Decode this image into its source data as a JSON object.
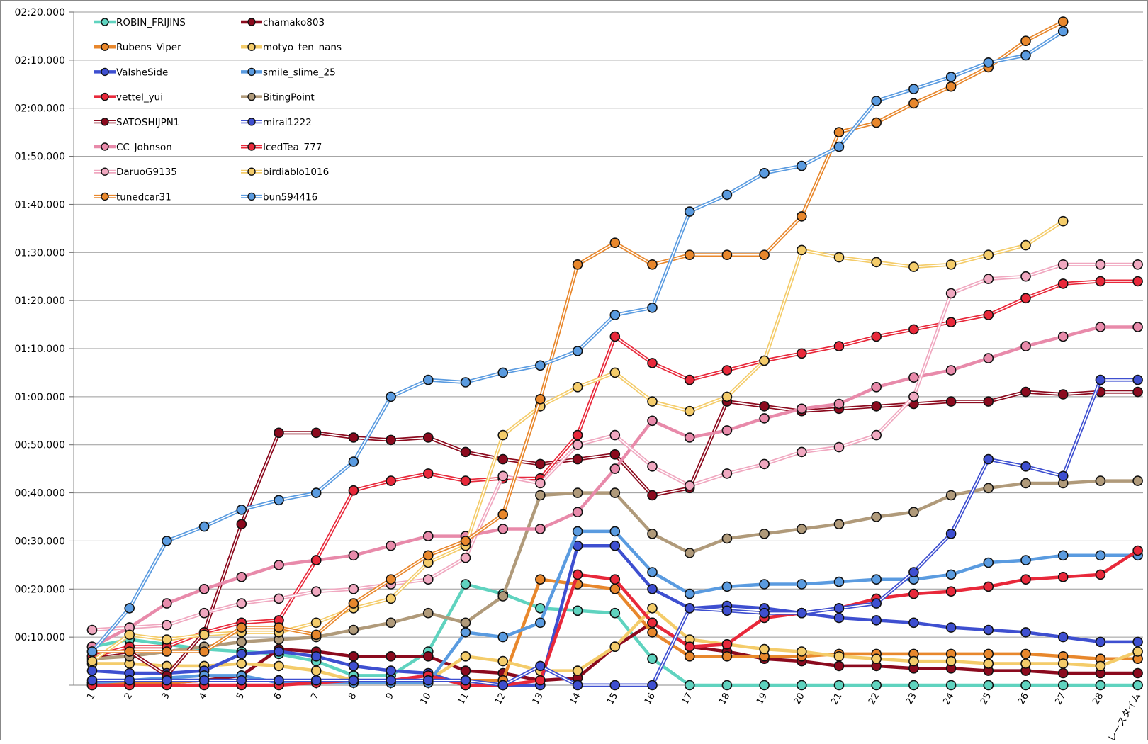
{
  "chart_data": {
    "type": "line",
    "title": "",
    "xlabel": "",
    "ylabel": "",
    "categories": [
      "1",
      "2",
      "3",
      "4",
      "5",
      "6",
      "7",
      "8",
      "9",
      "10",
      "11",
      "12",
      "13",
      "14",
      "15",
      "16",
      "17",
      "18",
      "19",
      "20",
      "21",
      "22",
      "23",
      "24",
      "25",
      "26",
      "27",
      "28",
      "レースタイム"
    ],
    "y_tick_labels": [
      "00:10.000",
      "00:20.000",
      "00:30.000",
      "00:40.000",
      "00:50.000",
      "01:00.000",
      "01:10.000",
      "01:20.000",
      "01:30.000",
      "01:40.000",
      "01:50.000",
      "02:00.000",
      "02:10.000",
      "02:20.000"
    ],
    "ylim": [
      0,
      140
    ],
    "grid": true,
    "legend_position": "top-left",
    "series": [
      {
        "name": "ROBIN_FRIJINS",
        "color": "#5fd3bf",
        "double": false,
        "values": [
          8,
          9.5,
          8.5,
          7.5,
          7,
          6.5,
          5,
          2,
          2,
          7,
          21,
          19,
          16,
          15.5,
          15,
          5.5,
          0,
          0,
          0,
          0,
          0,
          0,
          0,
          0,
          0,
          0,
          0,
          0,
          0
        ]
      },
      {
        "name": "chamako803",
        "color": "#8b0a1e",
        "double": false,
        "values": [
          0,
          0.5,
          0.5,
          1,
          2,
          7.5,
          7,
          6,
          6,
          6,
          3,
          2.5,
          1,
          1.5,
          8,
          13,
          8,
          7,
          5.5,
          5,
          4,
          4,
          3.5,
          3.5,
          3,
          3,
          2.5,
          2.5,
          2.5
        ]
      },
      {
        "name": "Rubens_Viper",
        "color": "#e8872c",
        "double": false,
        "values": [
          0.5,
          0.5,
          0.5,
          1,
          1,
          1,
          1,
          1,
          1,
          1,
          1,
          1,
          22,
          21,
          20,
          11,
          6,
          6,
          6,
          6,
          6.5,
          6.5,
          6.5,
          6.5,
          6.5,
          6.5,
          6,
          5.5,
          5.5
        ]
      },
      {
        "name": "motyo_ten_nans",
        "color": "#f4cc6a",
        "double": false,
        "values": [
          4.5,
          4.5,
          4,
          4,
          4.5,
          4,
          3,
          1,
          1,
          1,
          6,
          5,
          3,
          3,
          8,
          16,
          9.5,
          8.5,
          7.5,
          7,
          6,
          5.5,
          5,
          5,
          4.5,
          4.5,
          4.5,
          4,
          7
        ]
      },
      {
        "name": "ValsheSide",
        "color": "#3e4fd0",
        "double": false,
        "values": [
          3,
          2.5,
          2.5,
          3,
          6.5,
          7,
          6,
          4,
          3,
          2.5,
          0,
          0,
          0,
          29,
          29,
          20,
          16,
          16.5,
          16,
          15,
          14,
          13.5,
          13,
          12,
          11.5,
          11,
          10,
          9,
          9
        ]
      },
      {
        "name": "smile_slime_25",
        "color": "#5a9be0",
        "double": false,
        "values": [
          0.5,
          1,
          1.5,
          2,
          2,
          0.5,
          0.5,
          0.5,
          0.5,
          0.5,
          11,
          10,
          13,
          32,
          32,
          23.5,
          19,
          20.5,
          21,
          21,
          21.5,
          22,
          22,
          23,
          25.5,
          26,
          27,
          27,
          27
        ]
      },
      {
        "name": "vettel_yui",
        "color": "#e8283a",
        "double": false,
        "values": [
          0,
          0,
          0,
          0,
          0,
          0,
          0.5,
          1,
          1,
          2,
          0,
          0,
          1,
          23,
          22,
          13,
          8,
          8.5,
          14,
          15,
          16,
          18,
          19,
          19.5,
          20.5,
          22,
          22.5,
          23,
          28
        ]
      },
      {
        "name": "BitingPoint",
        "color": "#b09a7a",
        "double": false,
        "values": [
          5.5,
          6,
          7,
          8,
          9,
          9.5,
          10,
          11.5,
          13,
          15,
          13,
          18.5,
          39.5,
          40,
          40,
          31.5,
          27.5,
          30.5,
          31.5,
          32.5,
          33.5,
          35,
          36,
          39.5,
          41,
          42,
          42,
          42.5,
          42.5
        ]
      },
      {
        "name": "SATOSHIJPN1",
        "color": "#8b0a1e",
        "double": true,
        "values": [
          6,
          7,
          2,
          11,
          33.5,
          52.5,
          52.5,
          51.5,
          51,
          51.5,
          48.5,
          47,
          46,
          47,
          48,
          39.5,
          41,
          59,
          58,
          57,
          57.5,
          58,
          58.5,
          59,
          59,
          61,
          60.5,
          61,
          61
        ]
      },
      {
        "name": "mirai1222",
        "color": "#3e4fd0",
        "double": true,
        "values": [
          1,
          1,
          1,
          1,
          1,
          1,
          1,
          1,
          1,
          1,
          1,
          0,
          4,
          0,
          0,
          0,
          16,
          15.5,
          15,
          15,
          16,
          17,
          23.5,
          31.5,
          47,
          45.5,
          43.5,
          63.5,
          63.5
        ]
      },
      {
        "name": "CC_Johnson_",
        "color": "#e88aaa",
        "double": false,
        "values": [
          8,
          12,
          17,
          20,
          22.5,
          25,
          26,
          27,
          29,
          31,
          31,
          32.5,
          32.5,
          36,
          45,
          55,
          51.5,
          53,
          55.5,
          57.5,
          58.5,
          62,
          64,
          65.5,
          68,
          70.5,
          72.5,
          74.5,
          74.5
        ]
      },
      {
        "name": "IcedTea_777",
        "color": "#e8283a",
        "double": true,
        "values": [
          6,
          8,
          8,
          11,
          13,
          13.5,
          26,
          40.5,
          42.5,
          44,
          42.5,
          43,
          43,
          52,
          72.5,
          67,
          63.5,
          65.5,
          67.5,
          69,
          70.5,
          72.5,
          74,
          75.5,
          77,
          80.5,
          83.5,
          84,
          84
        ]
      },
      {
        "name": "DaruoG9135",
        "color": "#f0a8c0",
        "double": true,
        "values": [
          11.5,
          12,
          12.5,
          15,
          17,
          18,
          19.5,
          20,
          21,
          22,
          26.5,
          43.5,
          42,
          50,
          52,
          45.5,
          41.5,
          44,
          46,
          48.5,
          49.5,
          52,
          60,
          81.5,
          84.5,
          85,
          87.5,
          87.5,
          87.5
        ]
      },
      {
        "name": "birdiablo1016",
        "color": "#f4cc6a",
        "double": true,
        "values": [
          5,
          10.5,
          9.5,
          10.5,
          11,
          11,
          13,
          16,
          18,
          25.5,
          29,
          52,
          58,
          62,
          65,
          59,
          57,
          60,
          67.5,
          90.5,
          89,
          88,
          87,
          87.5,
          89.5,
          91.5,
          96.5,
          null,
          null
        ]
      },
      {
        "name": "tunedcar31",
        "color": "#e8872c",
        "double": true,
        "values": [
          7,
          7,
          7,
          7,
          12,
          12,
          10.5,
          17,
          22,
          27,
          30,
          35.5,
          59.5,
          87.5,
          92,
          87.5,
          89.5,
          89.5,
          89.5,
          97.5,
          115,
          117,
          121,
          124.5,
          128.5,
          134,
          138,
          null,
          null
        ]
      },
      {
        "name": "bun594416",
        "color": "#5a9be0",
        "double": true,
        "values": [
          7,
          16,
          30,
          33,
          36.5,
          38.5,
          40,
          46.5,
          60,
          63.5,
          63,
          65,
          66.5,
          69.5,
          77,
          78.5,
          98.5,
          102,
          106.5,
          108,
          112,
          121.5,
          124,
          126.5,
          129.5,
          131,
          136,
          null,
          null
        ]
      }
    ]
  }
}
